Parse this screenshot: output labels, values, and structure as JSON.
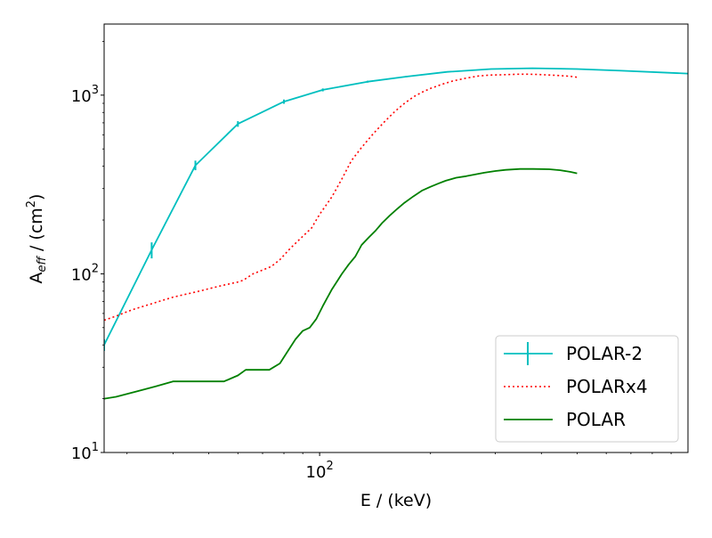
{
  "chart_data": {
    "type": "line",
    "title": "",
    "xlabel": "E / (keV)",
    "ylabel": {
      "main": "A",
      "subscript": "eff",
      "unit_prefix": " / (cm",
      "unit_sup": "2",
      "unit_suffix": ")"
    },
    "xscale": "log",
    "yscale": "log",
    "xlim": [
      26,
      1000
    ],
    "ylim": [
      10,
      2500
    ],
    "grid": false,
    "legend_position": "lower right",
    "x_ticks": [
      {
        "value": 100,
        "base": "10",
        "exp": "2"
      }
    ],
    "y_ticks": [
      {
        "value": 10,
        "base": "10",
        "exp": "1"
      },
      {
        "value": 100,
        "base": "10",
        "exp": "2"
      },
      {
        "value": 1000,
        "base": "10",
        "exp": "3"
      }
    ],
    "series": [
      {
        "name": "POLAR-2",
        "color": "#00bfbf",
        "style": "solid",
        "errorbars": true,
        "x": [
          26,
          35,
          46,
          60,
          80,
          102,
          135,
          172,
          222,
          292,
          378,
          500,
          660,
          1000
        ],
        "y": [
          40,
          136,
          405,
          690,
          920,
          1070,
          1190,
          1270,
          1350,
          1400,
          1415,
          1400,
          1370,
          1320
        ],
        "yerr": [
          3,
          14,
          25,
          25,
          25,
          20,
          15,
          12,
          10,
          8,
          8,
          6,
          6,
          6
        ]
      },
      {
        "name": "POLARx4",
        "color": "#ff0000",
        "style": "dotted",
        "x": [
          26,
          28,
          31,
          35,
          40,
          46,
          53,
          60,
          62,
          66,
          70,
          74,
          78,
          83,
          88,
          95,
          100,
          108,
          115,
          122,
          130,
          140,
          150,
          160,
          170,
          180,
          190,
          200,
          215,
          230,
          250,
          270,
          290,
          310,
          330,
          350,
          380,
          410,
          440,
          480,
          500
        ],
        "y": [
          55,
          58,
          63,
          68,
          74,
          79,
          85,
          90,
          92,
          100,
          105,
          110,
          120,
          138,
          155,
          180,
          215,
          270,
          340,
          430,
          510,
          610,
          710,
          810,
          900,
          980,
          1040,
          1090,
          1150,
          1200,
          1245,
          1280,
          1295,
          1300,
          1305,
          1310,
          1308,
          1300,
          1290,
          1275,
          1260
        ]
      },
      {
        "name": "POLAR",
        "color": "#008000",
        "style": "solid",
        "x": [
          26,
          28,
          32,
          36,
          40,
          45,
          50,
          55,
          60,
          63,
          68,
          73,
          78,
          82,
          86,
          90,
          94,
          98,
          102,
          108,
          115,
          120,
          125,
          130,
          136,
          142,
          148,
          155,
          162,
          170,
          180,
          190,
          200,
          210,
          220,
          235,
          250,
          265,
          280,
          300,
          320,
          350,
          380,
          420,
          450,
          480,
          500
        ],
        "y": [
          20,
          20.5,
          22,
          23.5,
          25,
          25,
          25,
          25,
          27,
          29,
          29,
          29,
          31.5,
          37,
          43,
          48,
          50,
          56,
          66,
          82,
          100,
          113,
          125,
          145,
          160,
          175,
          193,
          212,
          230,
          250,
          272,
          293,
          307,
          320,
          332,
          345,
          352,
          360,
          368,
          376,
          382,
          386,
          386,
          385,
          380,
          372,
          365
        ]
      }
    ]
  }
}
